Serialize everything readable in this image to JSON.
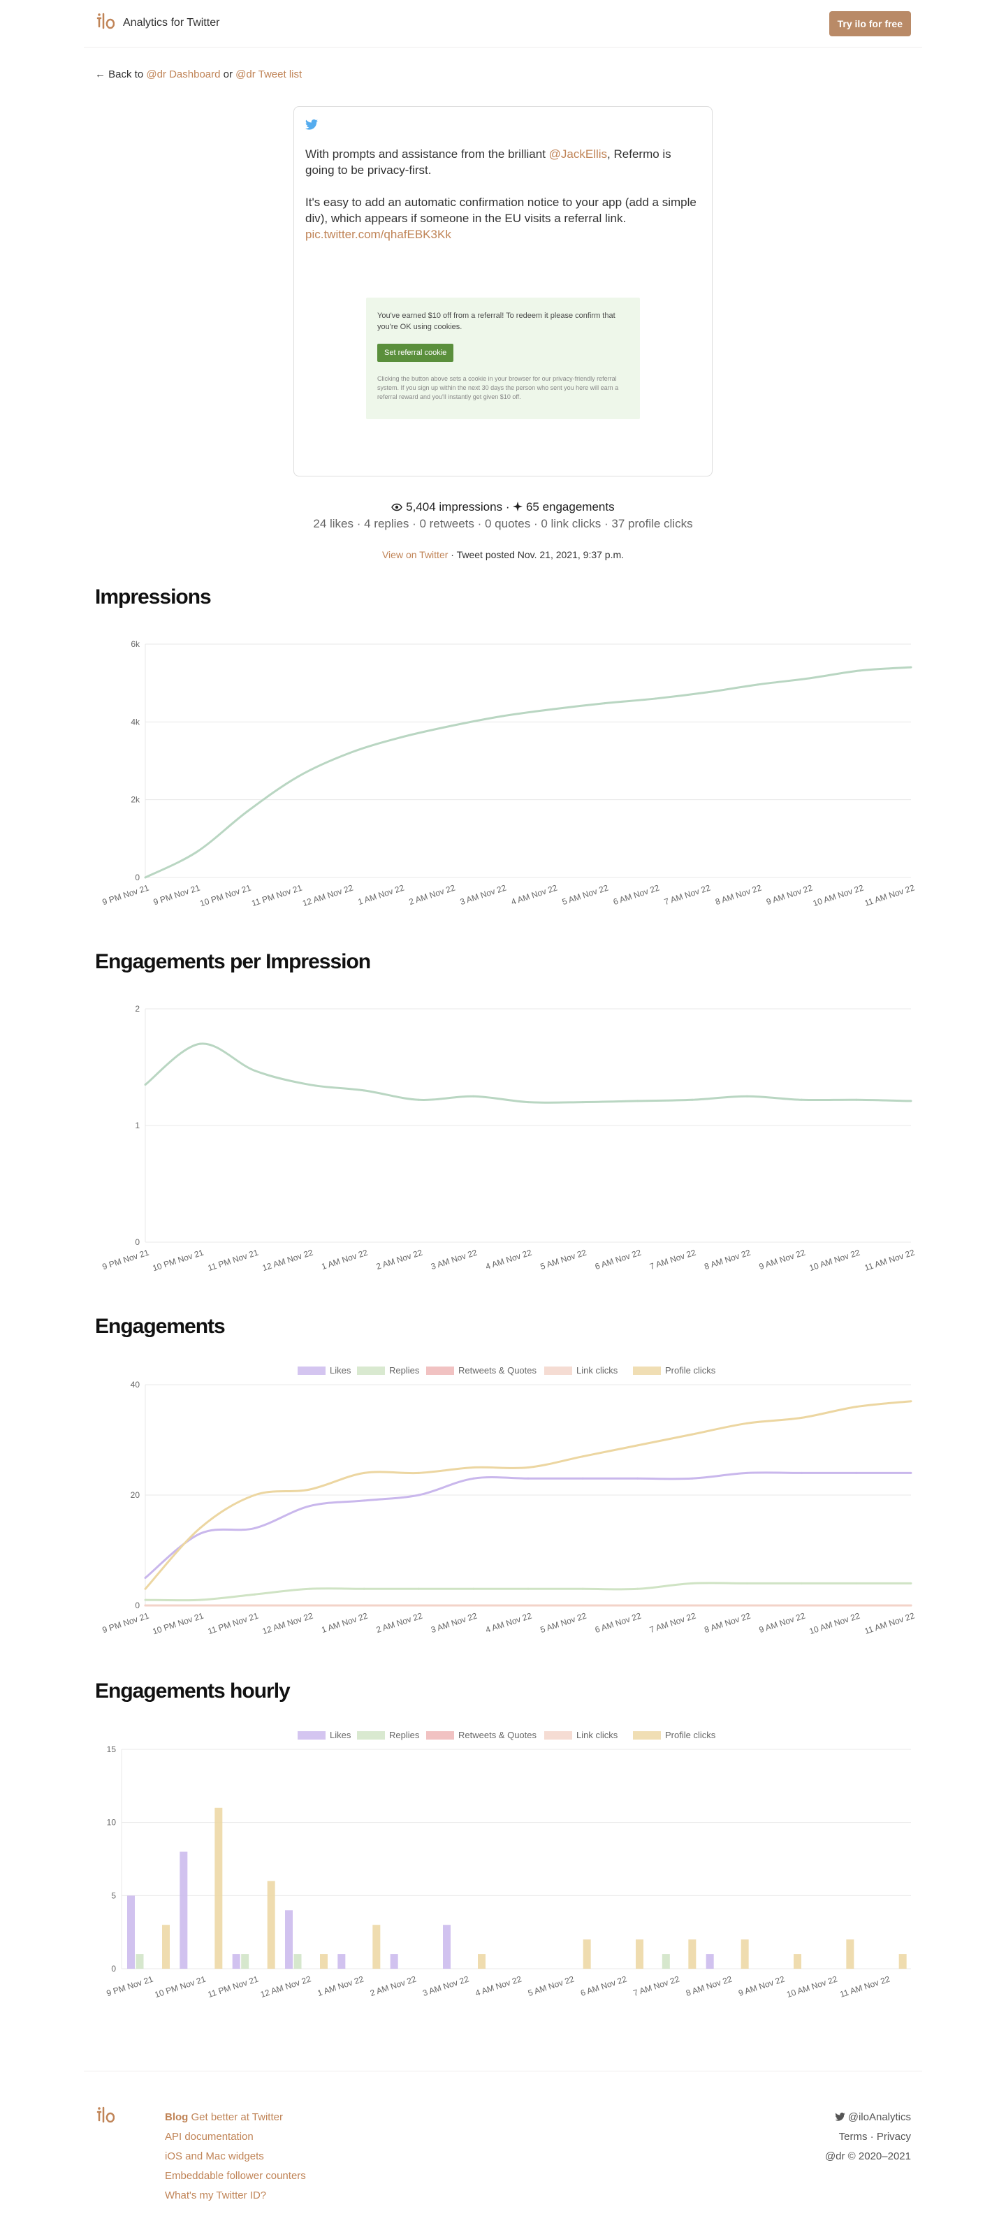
{
  "header": {
    "brand": "Analytics for Twitter",
    "cta": "Try ilo for free"
  },
  "back": {
    "prefix": "← Back to ",
    "dashboard": "@dr Dashboard",
    "or": " or ",
    "tweet_list": "@dr Tweet list"
  },
  "tweet": {
    "line1_pre": "With prompts and assistance from the brilliant ",
    "mention": "@JackEllis",
    "line1_post": ", Refermo is going to be privacy-first.",
    "line2": "It's easy to add an automatic confirmation notice to your app (add a simple div), which appears if someone in the EU visits a referral link.",
    "link": "pic.twitter.com/qhafEBK3Kk",
    "media": {
      "text": "You've earned $10 off from a referral! To redeem it please confirm that you're OK using cookies.",
      "button": "Set referral cookie",
      "fine": "Clicking the button above sets a cookie in your browser for our privacy-friendly referral system. If you sign up within the next 30 days the person who sent you here will earn a referral reward and you'll instantly get given $10 off."
    }
  },
  "stats": {
    "impressions": "5,404 impressions",
    "sep": " · ",
    "engagements": "65 engagements",
    "line2": "24 likes · 4 replies · 0 retweets · 0 quotes · 0 link clicks · 37 profile clicks",
    "view": "View on Twitter",
    "posted": " · Tweet posted Nov. 21, 2021, 9:37 p.m."
  },
  "colors": {
    "accent": "#c08457",
    "green_line": "#b9d6c2",
    "likes": "#c9b7ec",
    "replies": "#cfe3c4",
    "retweets": "#eeb3b3",
    "links": "#f3d3c8",
    "profile": "#ecd6a1"
  },
  "chart_data": [
    {
      "type": "line",
      "title": "Impressions",
      "x": [
        "9 PM Nov 21",
        "9 PM Nov 21",
        "10 PM Nov 21",
        "11 PM Nov 21",
        "12 AM Nov 22",
        "1 AM Nov 22",
        "2 AM Nov 22",
        "3 AM Nov 22",
        "4 AM Nov 22",
        "5 AM Nov 22",
        "6 AM Nov 22",
        "7 AM Nov 22",
        "8 AM Nov 22",
        "9 AM Nov 22",
        "10 AM Nov 22",
        "11 AM Nov 22"
      ],
      "values": [
        0,
        650,
        1700,
        2600,
        3200,
        3600,
        3900,
        4150,
        4330,
        4480,
        4600,
        4760,
        4960,
        5120,
        5320,
        5404
      ],
      "yticks": [
        "0",
        "2k",
        "4k",
        "6k"
      ],
      "ylim": [
        0,
        6000
      ]
    },
    {
      "type": "line",
      "title": "Engagements per Impression",
      "x": [
        "9 PM Nov 21",
        "10 PM Nov 21",
        "11 PM Nov 21",
        "12 AM Nov 22",
        "1 AM Nov 22",
        "2 AM Nov 22",
        "3 AM Nov 22",
        "4 AM Nov 22",
        "5 AM Nov 22",
        "6 AM Nov 22",
        "7 AM Nov 22",
        "8 AM Nov 22",
        "9 AM Nov 22",
        "10 AM Nov 22",
        "11 AM Nov 22"
      ],
      "values": [
        1.35,
        1.7,
        1.47,
        1.35,
        1.3,
        1.22,
        1.25,
        1.2,
        1.2,
        1.21,
        1.22,
        1.25,
        1.22,
        1.22,
        1.21
      ],
      "yticks": [
        "0",
        "1",
        "2"
      ],
      "ylim": [
        0,
        2
      ]
    },
    {
      "type": "line",
      "title": "Engagements",
      "x": [
        "9 PM Nov 21",
        "10 PM Nov 21",
        "11 PM Nov 21",
        "12 AM Nov 22",
        "1 AM Nov 22",
        "2 AM Nov 22",
        "3 AM Nov 22",
        "4 AM Nov 22",
        "5 AM Nov 22",
        "6 AM Nov 22",
        "7 AM Nov 22",
        "8 AM Nov 22",
        "9 AM Nov 22",
        "10 AM Nov 22",
        "11 AM Nov 22"
      ],
      "legend": [
        "Likes",
        "Replies",
        "Retweets & Quotes",
        "Link clicks",
        "Profile clicks"
      ],
      "series": [
        {
          "name": "Likes",
          "values": [
            5,
            13,
            14,
            18,
            19,
            20,
            23,
            23,
            23,
            23,
            23,
            24,
            24,
            24,
            24
          ]
        },
        {
          "name": "Replies",
          "values": [
            1,
            1,
            2,
            3,
            3,
            3,
            3,
            3,
            3,
            3,
            4,
            4,
            4,
            4,
            4
          ]
        },
        {
          "name": "Retweets & Quotes",
          "values": [
            0,
            0,
            0,
            0,
            0,
            0,
            0,
            0,
            0,
            0,
            0,
            0,
            0,
            0,
            0
          ]
        },
        {
          "name": "Link clicks",
          "values": [
            0,
            0,
            0,
            0,
            0,
            0,
            0,
            0,
            0,
            0,
            0,
            0,
            0,
            0,
            0
          ]
        },
        {
          "name": "Profile clicks",
          "values": [
            3,
            14,
            20,
            21,
            24,
            24,
            25,
            25,
            27,
            29,
            31,
            33,
            34,
            36,
            37
          ]
        }
      ],
      "yticks": [
        "0",
        "20",
        "40"
      ],
      "ylim": [
        0,
        40
      ]
    },
    {
      "type": "bar",
      "title": "Engagements hourly",
      "x": [
        "9 PM Nov 21",
        "10 PM Nov 21",
        "11 PM Nov 21",
        "12 AM Nov 22",
        "1 AM Nov 22",
        "2 AM Nov 22",
        "3 AM Nov 22",
        "4 AM Nov 22",
        "5 AM Nov 22",
        "6 AM Nov 22",
        "7 AM Nov 22",
        "8 AM Nov 22",
        "9 AM Nov 22",
        "10 AM Nov 22",
        "11 AM Nov 22"
      ],
      "legend": [
        "Likes",
        "Replies",
        "Retweets & Quotes",
        "Link clicks",
        "Profile clicks"
      ],
      "bars": [
        [
          5,
          1,
          0,
          0,
          3
        ],
        [
          8,
          0,
          0,
          0,
          11
        ],
        [
          1,
          1,
          0,
          0,
          6
        ],
        [
          4,
          1,
          0,
          0,
          1
        ],
        [
          1,
          0,
          0,
          0,
          3
        ],
        [
          1,
          0,
          0,
          0,
          0
        ],
        [
          3,
          0,
          0,
          0,
          1
        ],
        [
          0,
          0,
          0,
          0,
          0
        ],
        [
          0,
          0,
          0,
          0,
          2
        ],
        [
          0,
          0,
          0,
          0,
          2
        ],
        [
          0,
          1,
          0,
          0,
          2
        ],
        [
          1,
          0,
          0,
          0,
          2
        ],
        [
          0,
          0,
          0,
          0,
          1
        ],
        [
          0,
          0,
          0,
          0,
          2
        ],
        [
          0,
          0,
          0,
          0,
          1
        ]
      ],
      "yticks": [
        "0",
        "5",
        "10",
        "15"
      ],
      "ylim": [
        0,
        15
      ]
    }
  ],
  "footer": {
    "blog": "Blog",
    "tagline": "Get better at Twitter",
    "links": [
      "API documentation",
      "iOS and Mac widgets",
      "Embeddable follower counters",
      "What's my Twitter ID?"
    ],
    "handle": "@iloAnalytics",
    "terms": "Terms",
    "dot": " · ",
    "privacy": "Privacy",
    "copyright": "@dr © 2020–2021"
  }
}
